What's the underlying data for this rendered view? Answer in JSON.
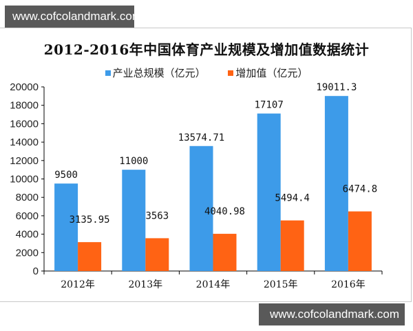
{
  "watermark_top": "www.cofcolandmark.com",
  "watermark_bottom": "www.cofcolandmark.com",
  "chart_data": {
    "type": "bar",
    "title": "2012-2016年中国体育产业规模及增加值数据统计",
    "categories": [
      "2012年",
      "2013年",
      "2014年",
      "2015年",
      "2016年"
    ],
    "series": [
      {
        "name": "产业总规模（亿元）",
        "color": "#3d9be9",
        "values": [
          9500,
          11000,
          13574.71,
          17107,
          19011.3
        ],
        "labels": [
          "9500",
          "11000",
          "13574.71",
          "17107",
          "19011.3"
        ]
      },
      {
        "name": "增加值（亿元）",
        "color": "#ff6314",
        "values": [
          3135.95,
          3563,
          4040.98,
          5494.4,
          6474.8
        ],
        "labels": [
          "3135.95",
          "3563",
          "4040.98",
          "5494.4",
          "6474.8"
        ]
      }
    ],
    "xlabel": "",
    "ylabel": "",
    "ylim": [
      0,
      20000
    ],
    "yticks": [
      0,
      2000,
      4000,
      6000,
      8000,
      10000,
      12000,
      14000,
      16000,
      18000,
      20000
    ],
    "grid": false,
    "legend_position": "top"
  }
}
